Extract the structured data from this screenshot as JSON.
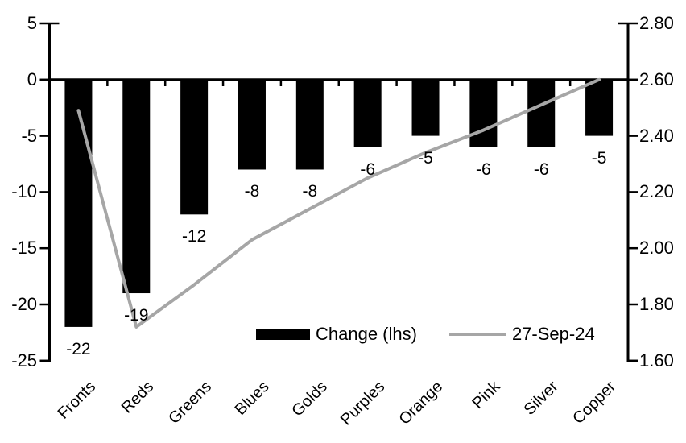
{
  "chart_data": {
    "type": "bar",
    "subtype": "combo-bar-line-dual-axis",
    "title": "",
    "categories": [
      "Fronts",
      "Reds",
      "Greens",
      "Blues",
      "Golds",
      "Purples",
      "Orange",
      "Pink",
      "Silver",
      "Copper"
    ],
    "series": [
      {
        "name": "Change (lhs)",
        "type": "bar",
        "axis": "left",
        "color": "#000000",
        "values": [
          -22,
          -19,
          -12,
          -8,
          -8,
          -6,
          -5,
          -6,
          -6,
          -5
        ],
        "data_labels": [
          "-22",
          "-19",
          "-12",
          "-8",
          "-8",
          "-6",
          "-5",
          "-6",
          "-6",
          "-5"
        ]
      },
      {
        "name": "27-Sep-24",
        "type": "line",
        "axis": "right",
        "color": "#a6a6a6",
        "values": [
          2.49,
          1.72,
          1.87,
          2.03,
          2.14,
          2.25,
          2.34,
          2.42,
          2.51,
          2.6
        ]
      }
    ],
    "left_axis": {
      "min": -25,
      "max": 5,
      "tick_values": [
        5,
        0,
        -5,
        -10,
        -15,
        -20,
        -25
      ],
      "tick_labels": [
        "5",
        "0",
        "-5",
        "-10",
        "-15",
        "-20",
        "-25"
      ]
    },
    "right_axis": {
      "min": 1.6,
      "max": 2.8,
      "tick_values": [
        2.8,
        2.6,
        2.4,
        2.2,
        2.0,
        1.8,
        1.6
      ],
      "tick_labels": [
        "2.80",
        "2.60",
        "2.40",
        "2.20",
        "2.00",
        "1.80",
        "1.60"
      ]
    },
    "grid": false,
    "legend_position": "bottom-center-inside"
  },
  "legend": {
    "items": [
      {
        "label": "Change (lhs)"
      },
      {
        "label": "27-Sep-24"
      }
    ]
  },
  "colors": {
    "bar": "#000000",
    "line": "#a6a6a6",
    "axis": "#000000",
    "text": "#000000",
    "background": "#ffffff"
  }
}
